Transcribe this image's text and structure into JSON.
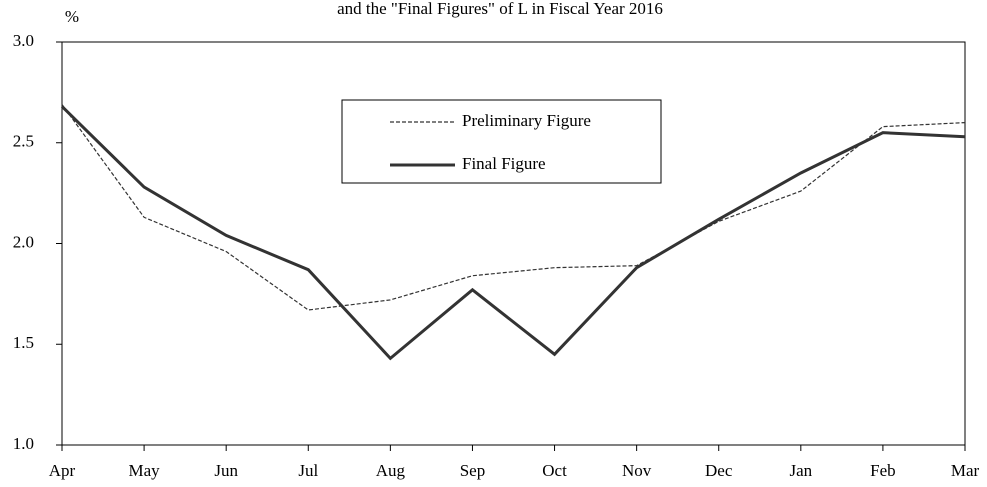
{
  "chart_data": {
    "type": "line",
    "title": "and the \"Final Figures\" of L in Fiscal Year 2016",
    "y_label": "%",
    "categories": [
      "Apr",
      "May",
      "Jun",
      "Jul",
      "Aug",
      "Sep",
      "Oct",
      "Nov",
      "Dec",
      "Jan",
      "Feb",
      "Mar"
    ],
    "series": [
      {
        "name": "Preliminary Figure",
        "color": "#333333",
        "dashed": true,
        "values": [
          2.69,
          2.13,
          1.96,
          1.67,
          1.72,
          1.84,
          1.88,
          1.89,
          2.11,
          2.26,
          2.58,
          2.6
        ]
      },
      {
        "name": "Final Figure",
        "color": "#333333",
        "dashed": false,
        "values": [
          2.68,
          2.28,
          2.04,
          1.87,
          1.43,
          1.77,
          1.45,
          1.88,
          2.12,
          2.35,
          2.55,
          2.53
        ]
      }
    ],
    "ylim": [
      1,
      3
    ],
    "yticks": [
      {
        "value": 1,
        "label": "1.0"
      },
      1.5,
      {
        "value": 2,
        "label": "2.0"
      },
      2.5,
      {
        "value": 3,
        "label": "3.0"
      }
    ],
    "grid": false
  }
}
